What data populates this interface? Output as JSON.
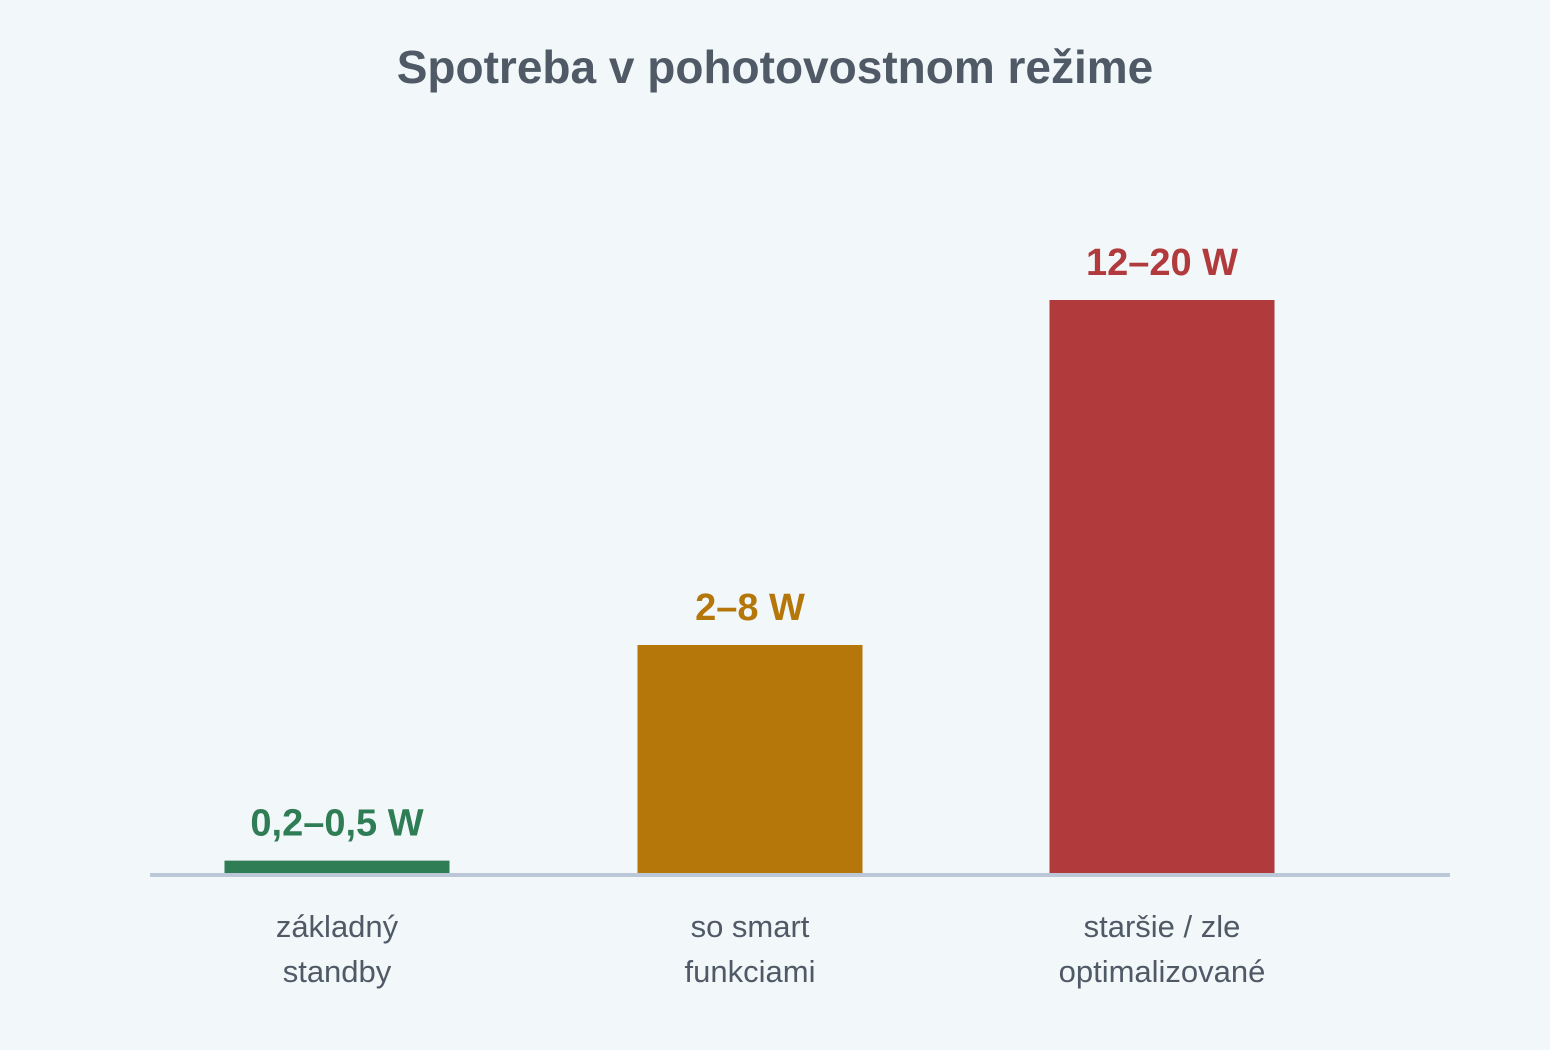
{
  "chart_data": {
    "type": "bar",
    "title": "Spotreba v pohotovostnom režime",
    "xlabel": "",
    "ylabel": "",
    "unit": "W",
    "ylim": [
      0,
      23
    ],
    "grid": false,
    "legend": "none",
    "categories": [
      [
        "základný",
        "standby"
      ],
      [
        "so smart",
        "funkciami"
      ],
      [
        "staršie / zle",
        "optimalizované"
      ]
    ],
    "values": [
      0.5,
      8,
      20
    ],
    "value_labels": [
      "0,2–0,5 W",
      "2–8 W",
      "12–20 W"
    ],
    "colors": [
      "#2e7d55",
      "#b5760a",
      "#b03a3c"
    ],
    "axis_color": "#bcc8d8"
  }
}
